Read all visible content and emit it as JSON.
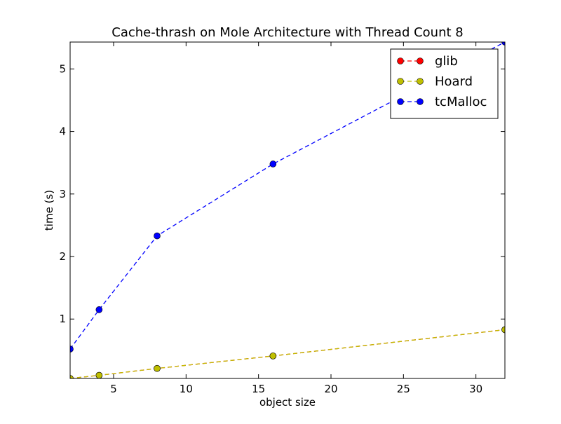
{
  "chart_data": {
    "type": "line",
    "title": "Cache-thrash on Mole Architecture with Thread Count 8",
    "xlabel": "object size",
    "ylabel": "time (s)",
    "xlim": [
      2,
      32
    ],
    "ylim": [
      0.05,
      5.43
    ],
    "xticks": [
      5,
      10,
      15,
      20,
      25,
      30
    ],
    "yticks": [
      1,
      2,
      3,
      4,
      5
    ],
    "grid": false,
    "legend_position": "top-right",
    "x": [
      2,
      4,
      8,
      16,
      32
    ],
    "series": [
      {
        "name": "glib",
        "color": "#ff0000",
        "values": [
          0.05,
          0.1,
          0.21,
          0.41,
          0.83
        ]
      },
      {
        "name": "Hoard",
        "color": "#bfbf00",
        "values": [
          0.05,
          0.1,
          0.21,
          0.41,
          0.83
        ]
      },
      {
        "name": "tcMalloc",
        "color": "#0000ff",
        "values": [
          0.52,
          1.15,
          2.33,
          3.48,
          5.43
        ]
      }
    ]
  }
}
